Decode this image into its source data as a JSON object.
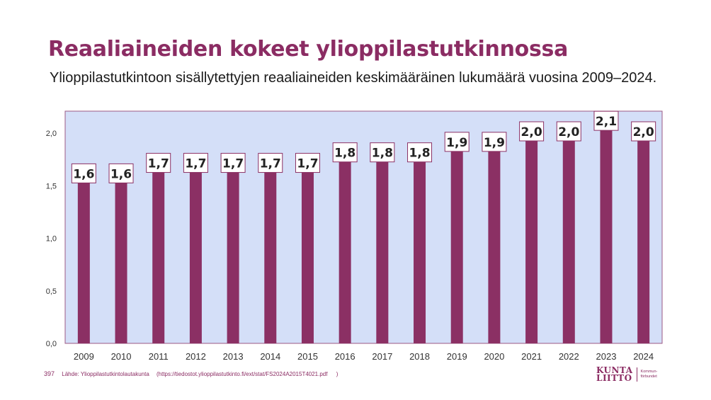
{
  "header": {
    "title": "Reaaliaineiden kokeet ylioppilastutkinnossa",
    "subtitle": "Ylioppilastutkintoon sisällytettyjen reaaliaineiden keskimääräinen lukumäärä vuosina 2009–2024."
  },
  "footer": {
    "page_number": "397",
    "source_label": "Lähde: Ylioppilastutkintolautakunta",
    "source_url": "(https://tiedostot.ylioppilastutkinto.fi/ext/stat/FS2024A2015T4021.pdf",
    "source_close": ")",
    "logo_line1": "KUNTA",
    "logo_line2": "LIITTO",
    "logo_sub1": "Kommun-",
    "logo_sub2": "förbundet"
  },
  "colors": {
    "bar": "#8b3064",
    "plot_background": "#d4dff8",
    "plot_border": "#9b5a85",
    "label_border": "#8b3064",
    "brand": "#8b2c63"
  },
  "chart_data": {
    "type": "bar",
    "categories": [
      "2009",
      "2010",
      "2011",
      "2012",
      "2013",
      "2014",
      "2015",
      "2016",
      "2017",
      "2018",
      "2019",
      "2020",
      "2021",
      "2022",
      "2023",
      "2024"
    ],
    "values": [
      1.6,
      1.6,
      1.7,
      1.7,
      1.7,
      1.7,
      1.7,
      1.8,
      1.8,
      1.8,
      1.9,
      1.9,
      2.0,
      2.0,
      2.1,
      2.0
    ],
    "data_labels": [
      "1,6",
      "1,6",
      "1,7",
      "1,7",
      "1,7",
      "1,7",
      "1,7",
      "1,8",
      "1,8",
      "1,8",
      "1,9",
      "1,9",
      "2,0",
      "2,0",
      "2,1",
      "2,0"
    ],
    "yticks": [
      0,
      0.5,
      1.0,
      1.5,
      2.0
    ],
    "ytick_labels": [
      "0,0",
      "0,5",
      "1,0",
      "1,5",
      "2,0"
    ],
    "ylim": [
      0,
      2.1
    ],
    "xlabel": "",
    "ylabel": "",
    "grid": false,
    "legend": false
  }
}
